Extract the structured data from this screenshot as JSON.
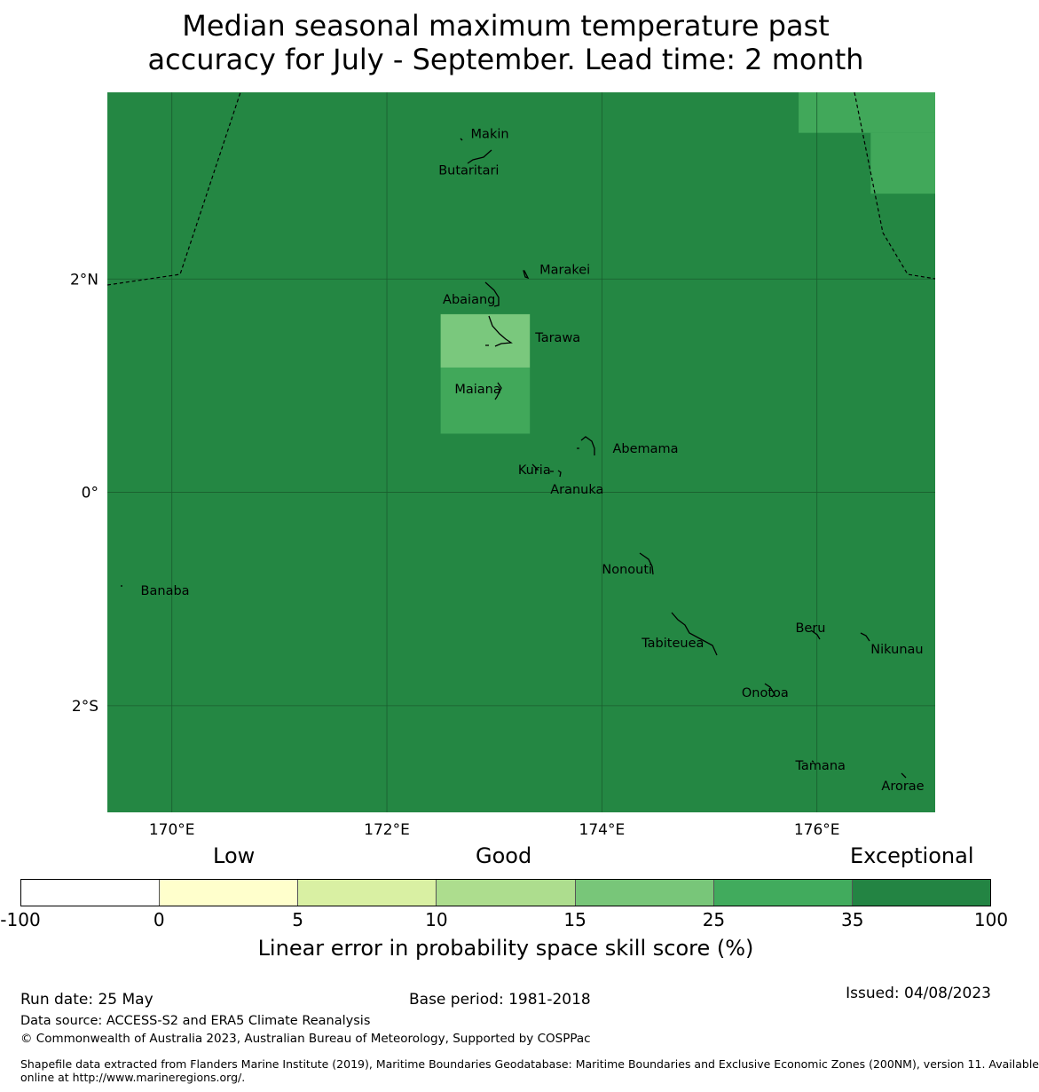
{
  "title": {
    "line1": "Median seasonal maximum temperature past",
    "line2": "accuracy for July - September. Lead time: 2 month"
  },
  "map": {
    "background_color": "#248743",
    "gridline_color": "#1a5c2e",
    "cells": [
      {
        "region": "north-east",
        "lon": [
          175.83,
          177.1
        ],
        "lat": [
          3.37,
          3.75
        ],
        "color": "#41a85a",
        "category": "25-35"
      },
      {
        "region": "north-east-edge",
        "lon": [
          176.5,
          177.1
        ],
        "lat": [
          2.8,
          3.37
        ],
        "color": "#41a85a",
        "category": "25-35"
      },
      {
        "region": "tarawa",
        "lon": [
          172.5,
          173.33
        ],
        "lat": [
          1.17,
          1.67
        ],
        "color": "#7ac87d",
        "category": "15-25"
      },
      {
        "region": "maiana",
        "lon": [
          172.5,
          173.33
        ],
        "lat": [
          0.55,
          1.17
        ],
        "color": "#41a85a",
        "category": "25-35"
      }
    ],
    "x_ticks": [
      "170°E",
      "172°E",
      "174°E",
      "176°E"
    ],
    "y_ticks": [
      "2°N",
      "0°",
      "2°S"
    ],
    "places": [
      {
        "name": "Makin",
        "lon": 172.78,
        "lat": 3.32
      },
      {
        "name": "Butaritari",
        "lon": 172.48,
        "lat": 2.98
      },
      {
        "name": "Marakei",
        "lon": 173.42,
        "lat": 2.05
      },
      {
        "name": "Abaiang",
        "lon": 172.52,
        "lat": 1.77
      },
      {
        "name": "Tarawa",
        "lon": 173.38,
        "lat": 1.41
      },
      {
        "name": "Maiana",
        "lon": 172.63,
        "lat": 0.93
      },
      {
        "name": "Abemama",
        "lon": 174.1,
        "lat": 0.37
      },
      {
        "name": "Kuria",
        "lon": 173.22,
        "lat": 0.17
      },
      {
        "name": "Aranuka",
        "lon": 173.52,
        "lat": -0.01
      },
      {
        "name": "Banaba",
        "lon": 169.71,
        "lat": -0.96
      },
      {
        "name": "Nonouti",
        "lon": 174.0,
        "lat": -0.76
      },
      {
        "name": "Tabiteuea",
        "lon": 174.37,
        "lat": -1.45
      },
      {
        "name": "Beru",
        "lon": 175.8,
        "lat": -1.31
      },
      {
        "name": "Nikunau",
        "lon": 176.5,
        "lat": -1.51
      },
      {
        "name": "Onotoa",
        "lon": 175.3,
        "lat": -1.92
      },
      {
        "name": "Tamana",
        "lon": 175.8,
        "lat": -2.6
      },
      {
        "name": "Arorae",
        "lon": 176.6,
        "lat": -2.79
      }
    ]
  },
  "colorbar": {
    "headings": {
      "low": "Low",
      "good": "Good",
      "exceptional": "Exceptional"
    },
    "segments": [
      {
        "from": "-100",
        "to": "0",
        "color": "#ffffff"
      },
      {
        "from": "0",
        "to": "5",
        "color": "#ffffcc"
      },
      {
        "from": "5",
        "to": "10",
        "color": "#d9f0a3"
      },
      {
        "from": "10",
        "to": "15",
        "color": "#addd8e"
      },
      {
        "from": "15",
        "to": "25",
        "color": "#78c679"
      },
      {
        "from": "25",
        "to": "35",
        "color": "#41ab5d"
      },
      {
        "from": "35",
        "to": "100",
        "color": "#238443"
      }
    ],
    "ticks": [
      "-100",
      "0",
      "5",
      "10",
      "15",
      "25",
      "35",
      "100"
    ],
    "axis_label": "Linear error in probability space skill score (%)"
  },
  "footer": {
    "run_date": "Run date: 25 May",
    "base_period": "Base period: 1981-2018",
    "issued": "Issued: 04/08/2023",
    "data_source": "Data source: ACCESS-S2 and ERA5 Climate Reanalysis",
    "copyright": "© Commonwealth of Australia 2023, Australian Bureau of Meteorology, Supported by COSPPac",
    "shapefile_line1": "Shapefile data extracted from Flanders Marine Institute (2019), Maritime Boundaries Geodatabase: Maritime Boundaries and Exclusive Economic Zones (200NM), version 11. Available",
    "shapefile_line2": "online at http://www.marineregions.org/."
  }
}
